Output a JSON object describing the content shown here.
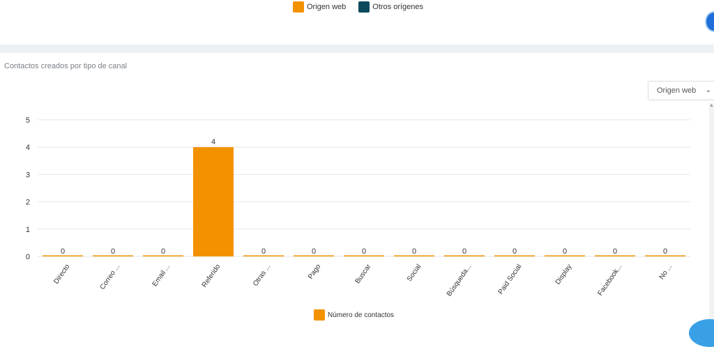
{
  "top_legend": {
    "items": [
      {
        "label": "Origen web",
        "color": "#f39200"
      },
      {
        "label": "Otros orígenes",
        "color": "#0b4a5c"
      }
    ]
  },
  "panel": {
    "title": "Contactos creados por tipo de canal",
    "select_value": "Origen web"
  },
  "chart_data": {
    "type": "bar",
    "categories": [
      "Directo",
      "Correo ...",
      "Email ...",
      "Referido",
      "Otras ...",
      "Pago",
      "Buscar",
      "Social",
      "Búsqueda...",
      "Paid Social",
      "Display",
      "Facebook...",
      "No ..."
    ],
    "series": [
      {
        "name": "Número de contactos",
        "color": "#f39200",
        "values": [
          0,
          0,
          0,
          4,
          0,
          0,
          0,
          0,
          0,
          0,
          0,
          0,
          0
        ]
      }
    ],
    "ylim": [
      0,
      5
    ],
    "yticks": [
      "0",
      "1",
      "2",
      "3",
      "4",
      "5"
    ],
    "data_labels": [
      "0",
      "0",
      "0",
      "4",
      "0",
      "0",
      "0",
      "0",
      "0",
      "0",
      "0",
      "0",
      "0"
    ],
    "grid": true,
    "legend": "bottom"
  }
}
